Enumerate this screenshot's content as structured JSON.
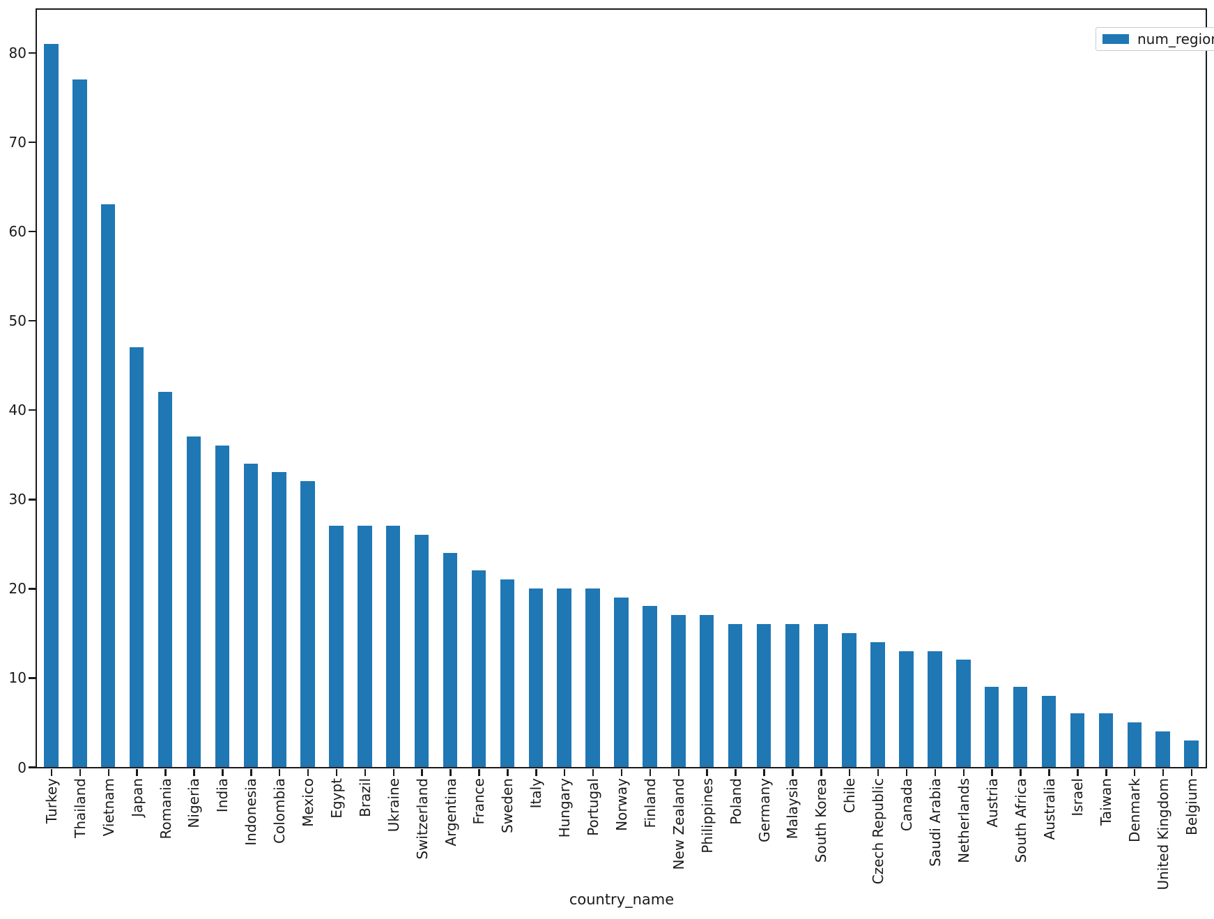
{
  "chart_data": {
    "type": "bar",
    "title": "",
    "xlabel": "country_name",
    "ylabel": "",
    "categories": [
      "Turkey",
      "Thailand",
      "Vietnam",
      "Japan",
      "Romania",
      "Nigeria",
      "India",
      "Indonesia",
      "Colombia",
      "Mexico",
      "Egypt",
      "Brazil",
      "Ukraine",
      "Switzerland",
      "Argentina",
      "France",
      "Sweden",
      "Italy",
      "Hungary",
      "Portugal",
      "Norway",
      "Finland",
      "New Zealand",
      "Philippines",
      "Poland",
      "Germany",
      "Malaysia",
      "South Korea",
      "Chile",
      "Czech Republic",
      "Canada",
      "Saudi Arabia",
      "Netherlands",
      "Austria",
      "South Africa",
      "Australia",
      "Israel",
      "Taiwan",
      "Denmark",
      "United Kingdom",
      "Belgium"
    ],
    "series": [
      {
        "name": "num_regions",
        "color": "#1f77b4",
        "values": [
          81,
          77,
          63,
          47,
          42,
          37,
          36,
          34,
          33,
          32,
          27,
          27,
          27,
          26,
          24,
          22,
          21,
          20,
          20,
          20,
          19,
          18,
          17,
          17,
          16,
          16,
          16,
          16,
          15,
          14,
          13,
          13,
          12,
          9,
          9,
          8,
          6,
          6,
          5,
          4,
          3
        ]
      }
    ],
    "ylim": [
      0,
      84.8
    ],
    "yticks": [
      0,
      10,
      20,
      30,
      40,
      50,
      60,
      70,
      80
    ],
    "x_tick_rotation": 90,
    "grid": false,
    "legend_position": "upper-right",
    "bar_width_fraction": 0.5
  },
  "colors": {
    "bar": "#1f77b4",
    "spine": "#1a1a1a",
    "legend_border": "#c9c9c9",
    "background": "#ffffff"
  }
}
